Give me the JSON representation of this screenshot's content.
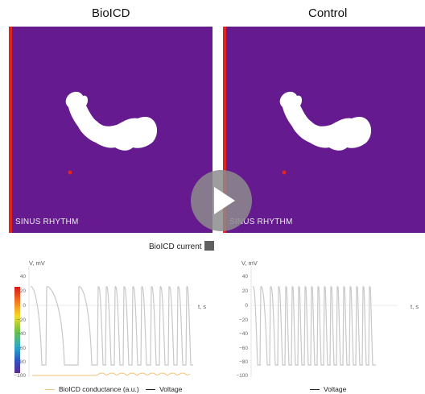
{
  "panels": {
    "left_title": "BioICD",
    "right_title": "Control",
    "mode_label": "SINUS RHYTHM"
  },
  "current": {
    "label": "BioICD current",
    "swatch_color": "#5f5f5f"
  },
  "colors": {
    "tissue": "#651a8f",
    "edge": "#e2231a",
    "trace": "#c8c8c8",
    "conductance": "#f2c27a"
  },
  "plots": {
    "ylabel": "V, mV",
    "xlabel": "t, s",
    "y_ticks": [
      "40",
      "20",
      "0",
      "−20",
      "−40",
      "−60",
      "−80",
      "−100"
    ],
    "left_legend": {
      "conductance": "BioICD conductance (a.u.)",
      "voltage": "Voltage"
    },
    "right_legend": {
      "voltage": "Voltage"
    }
  },
  "controls": {
    "play_icon": "play-icon"
  }
}
